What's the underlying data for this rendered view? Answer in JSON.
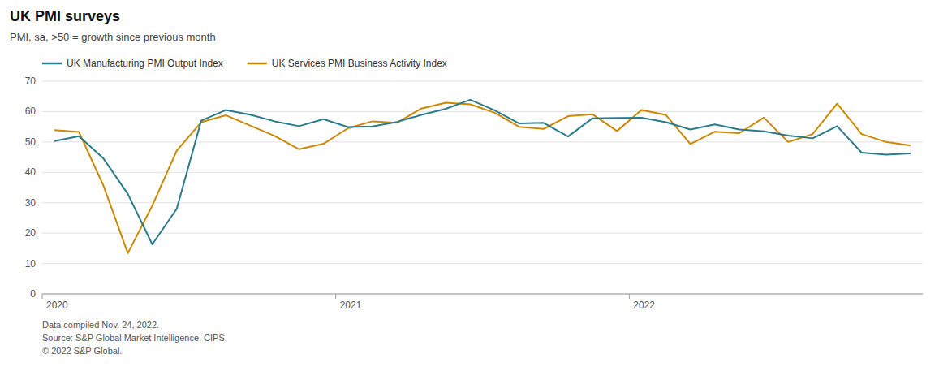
{
  "chart_data": {
    "type": "line",
    "title": "UK PMI surveys",
    "subtitle": "PMI, sa, >50 = growth since previous month",
    "annotations": [
      "Data compiled Nov. 24, 2022.",
      "Source: S&P Global Market Intelligence, CIPS.",
      "© 2022 S&P Global."
    ],
    "categories": [
      "2020",
      null,
      null,
      null,
      null,
      null,
      null,
      null,
      null,
      null,
      null,
      null,
      "2021",
      null,
      null,
      null,
      null,
      null,
      null,
      null,
      null,
      null,
      null,
      null,
      "2022",
      null,
      null,
      null,
      null,
      null,
      null,
      null,
      null,
      null,
      null,
      null
    ],
    "series": [
      {
        "name": "UK Manufacturing PMI Output Index",
        "color": "#2a7b8c",
        "values": [
          50.3,
          51.9,
          44.6,
          32.9,
          16.3,
          28.0,
          57.0,
          60.5,
          59.0,
          56.8,
          55.2,
          57.5,
          54.9,
          55.1,
          56.6,
          58.9,
          60.9,
          63.9,
          60.4,
          56.1,
          56.3,
          51.8,
          57.8,
          57.9,
          58.0,
          56.5,
          54.1,
          55.8,
          54.1,
          53.5,
          52.1,
          51.2,
          55.2,
          46.5,
          45.8,
          46.2
        ]
      },
      {
        "name": "UK Services PMI Business Activity Index",
        "color": "#cc8800",
        "values": [
          53.9,
          53.3,
          35.7,
          13.4,
          29.0,
          47.1,
          56.5,
          58.8,
          55.4,
          52.0,
          47.6,
          49.4,
          54.5,
          56.8,
          56.3,
          61.0,
          62.9,
          62.4,
          59.6,
          55.0,
          54.3,
          58.5,
          59.1,
          53.6,
          60.5,
          58.9,
          49.3,
          53.4,
          52.9,
          58.0,
          50.0,
          52.6,
          62.6,
          52.6,
          50.0,
          48.8
        ]
      }
    ],
    "ylim": [
      0,
      70
    ],
    "yticks": [
      0,
      10,
      20,
      30,
      40,
      50,
      60,
      70
    ],
    "grid": true,
    "legend": "top-left"
  }
}
